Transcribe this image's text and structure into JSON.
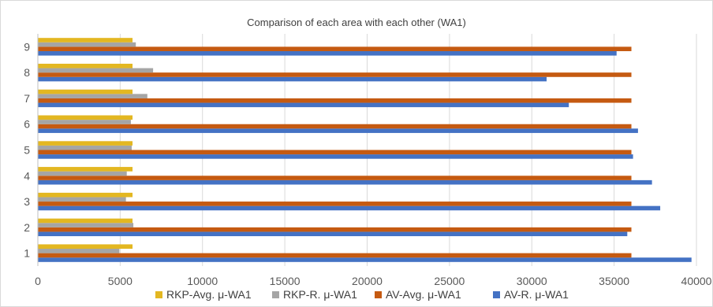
{
  "chart_data": {
    "type": "bar",
    "orientation": "horizontal",
    "title": "Comparison of each area with each other (WA1)",
    "xlabel": "",
    "ylabel": "",
    "categories": [
      "1",
      "2",
      "3",
      "4",
      "5",
      "6",
      "7",
      "8",
      "9"
    ],
    "xlim": [
      0,
      40000
    ],
    "xticks": [
      0,
      5000,
      10000,
      15000,
      20000,
      25000,
      30000,
      35000,
      40000
    ],
    "grid": "vertical",
    "legend_position": "bottom",
    "series": [
      {
        "name": "AV-R. μ-WA1",
        "color": "#4472c4",
        "values": [
          39700,
          35800,
          37800,
          37300,
          36150,
          36450,
          32250,
          30900,
          35150
        ]
      },
      {
        "name": "AV-Avg. μ-WA1",
        "color": "#c55a11",
        "values": [
          36050,
          36050,
          36050,
          36050,
          36050,
          36050,
          36050,
          36050,
          36050
        ]
      },
      {
        "name": "RKP-R. μ-WA1",
        "color": "#a5a5a5",
        "values": [
          4950,
          5800,
          5350,
          5400,
          5700,
          5650,
          6650,
          7000,
          5950
        ]
      },
      {
        "name": "RKP-Avg. μ-WA1",
        "color": "#e3b721",
        "values": [
          5750,
          5750,
          5750,
          5750,
          5750,
          5750,
          5750,
          5750,
          5750
        ]
      }
    ],
    "legend_order": [
      "RKP-Avg. μ-WA1",
      "RKP-R. μ-WA1",
      "AV-Avg. μ-WA1",
      "AV-R. μ-WA1"
    ]
  }
}
